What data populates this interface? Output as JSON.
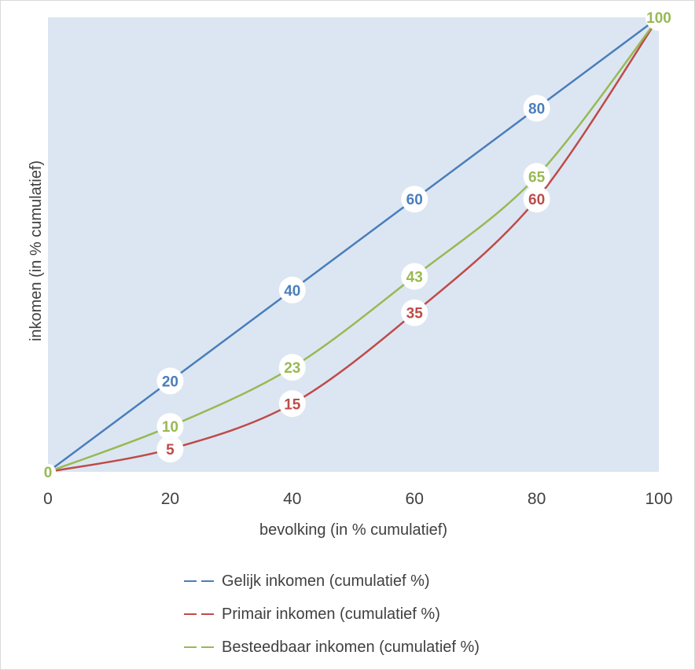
{
  "chart_data": {
    "type": "line",
    "title": "",
    "xlabel": "bevolking (in % cumulatief)",
    "ylabel": "inkomen (in % cumulatief)",
    "xlim": [
      0,
      100
    ],
    "ylim": [
      0,
      100
    ],
    "x_ticks": [
      "0",
      "20",
      "40",
      "60",
      "80",
      "100"
    ],
    "y_ticks": [],
    "grid": false,
    "plot_background": "#dce6f2",
    "legend_position": "bottom",
    "x": [
      0,
      20,
      40,
      60,
      80,
      100
    ],
    "series": [
      {
        "name": "Gelijk inkomen (cumulatief %)",
        "color": "#4a7ebb",
        "values": [
          0,
          20,
          40,
          60,
          80,
          100
        ]
      },
      {
        "name": "Primair inkomen (cumulatief %)",
        "color": "#be4b48",
        "values": [
          0,
          5,
          15,
          35,
          60,
          100
        ]
      },
      {
        "name": "Besteedbaar inkomen (cumulatief %)",
        "color": "#98b954",
        "values": [
          0,
          10,
          23,
          43,
          65,
          100
        ]
      }
    ]
  }
}
